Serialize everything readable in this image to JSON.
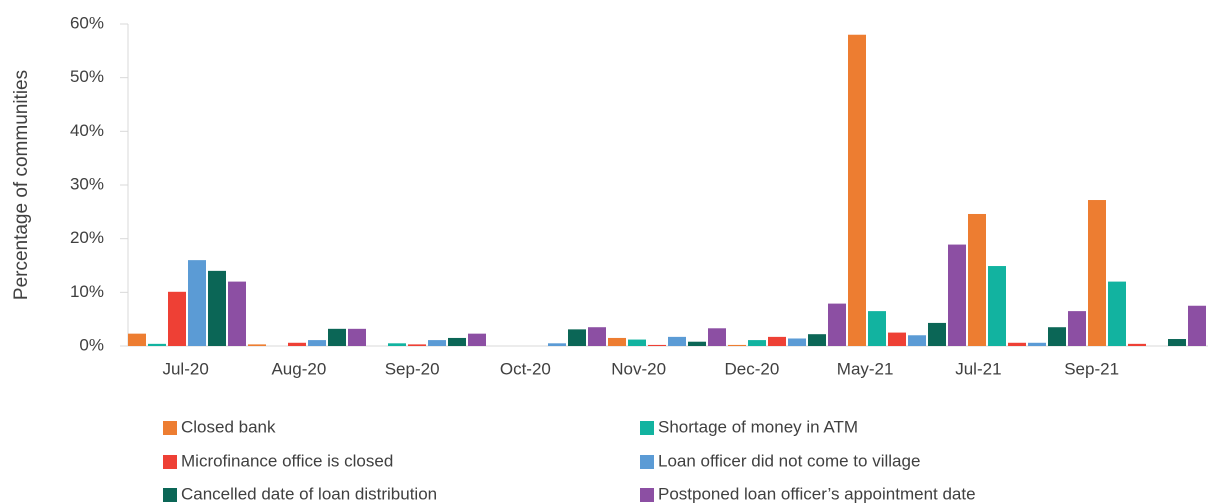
{
  "chart_data": {
    "type": "bar",
    "y_label": "Percentage of communities",
    "categories": [
      "Jul-20",
      "Aug-20",
      "Sep-20",
      "Oct-20",
      "Nov-20",
      "Dec-20",
      "May-21",
      "Jul-21",
      "Sep-21"
    ],
    "series": [
      {
        "name": "Closed bank",
        "color": "#ed7d31",
        "values": [
          2.3,
          0.3,
          0,
          0,
          1.5,
          0.2,
          58,
          24.6,
          27.2
        ]
      },
      {
        "name": "Shortage of money in ATM",
        "color": "#12b3a0",
        "values": [
          0.4,
          0,
          0.5,
          0,
          1.2,
          1.1,
          6.5,
          14.9,
          12
        ]
      },
      {
        "name": "Microfinance office is closed",
        "color": "#ee4035",
        "values": [
          10.1,
          0.6,
          0.3,
          0,
          0.2,
          1.7,
          2.5,
          0.6,
          0.4
        ]
      },
      {
        "name": "Loan officer did not come to village",
        "color": "#5b9bd5",
        "values": [
          16,
          1.1,
          1.1,
          0.5,
          1.7,
          1.4,
          2.0,
          0.6,
          0
        ]
      },
      {
        "name": "Cancelled date of loan distribution",
        "color": "#0b6656",
        "values": [
          14,
          3.2,
          1.5,
          3.1,
          0.8,
          2.2,
          4.3,
          3.5,
          1.3
        ]
      },
      {
        "name": "Postponed loan officer’s appointment date",
        "color": "#8c4fa3",
        "values": [
          12,
          3.2,
          2.3,
          3.5,
          3.3,
          7.9,
          18.9,
          6.5,
          7.5
        ]
      }
    ],
    "ylim": [
      0,
      60
    ],
    "yticks": [
      {
        "value": 0,
        "label": "0%"
      },
      {
        "value": 10,
        "label": "10%"
      },
      {
        "value": 20,
        "label": "20%"
      },
      {
        "value": 30,
        "label": "30%"
      },
      {
        "value": 40,
        "label": "40%"
      },
      {
        "value": 50,
        "label": "50%"
      },
      {
        "value": 60,
        "label": "60%"
      }
    ]
  }
}
